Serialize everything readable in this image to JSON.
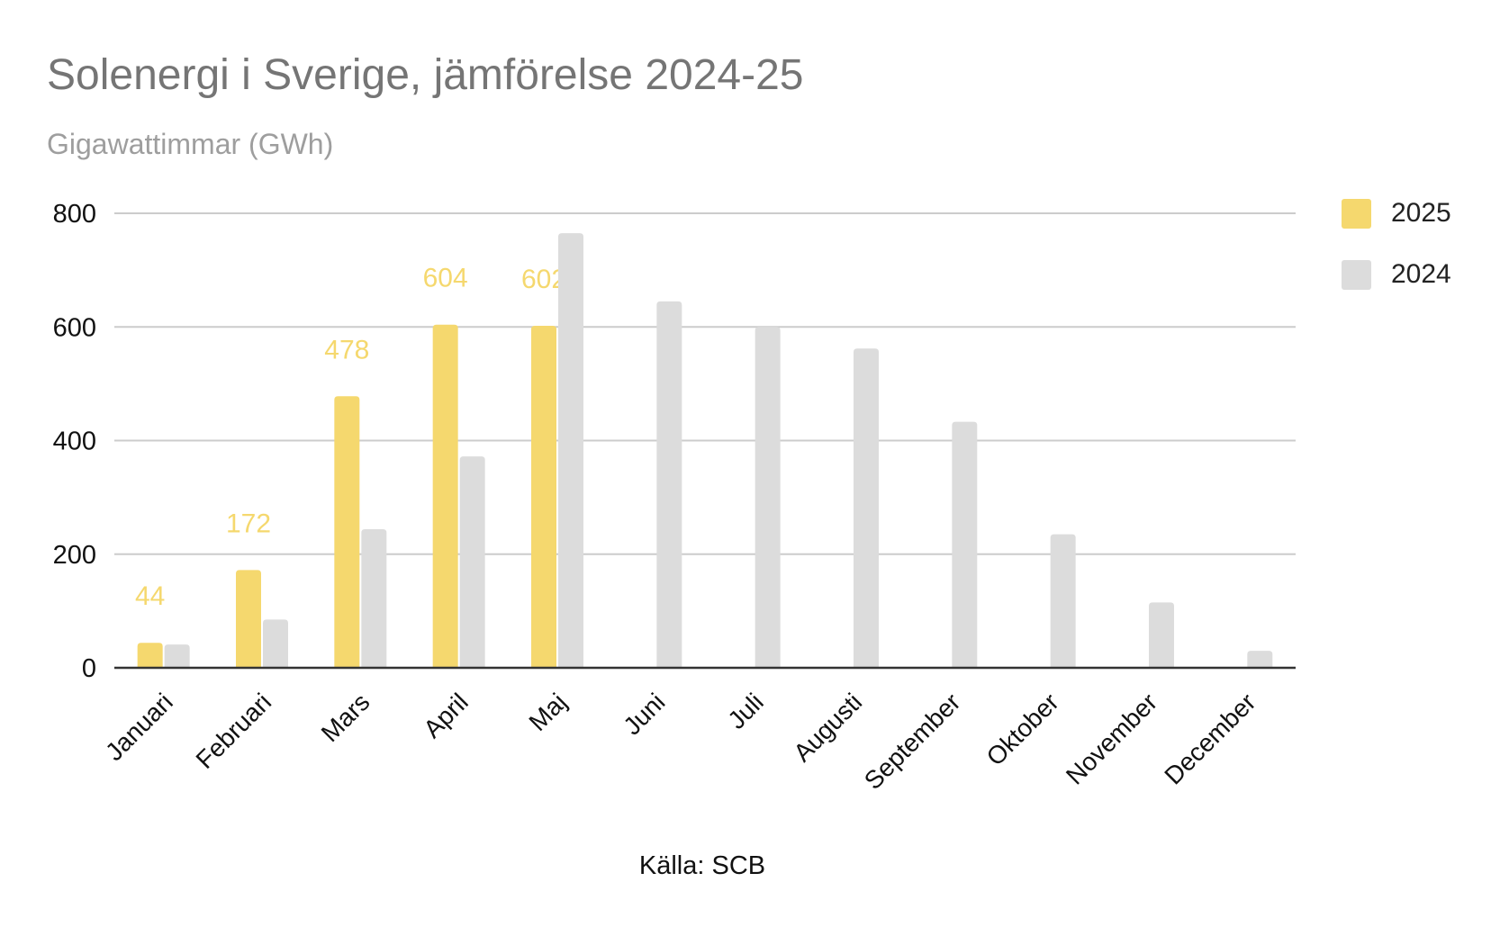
{
  "chart_data": {
    "type": "bar",
    "title": "Solenergi i Sverige, jämförelse 2024-25",
    "subtitle": "Gigawattimmar (GWh)",
    "source": "Källa: SCB",
    "categories": [
      "Januari",
      "Februari",
      "Mars",
      "April",
      "Maj",
      "Juni",
      "Juli",
      "Augusti",
      "September",
      "Oktober",
      "November",
      "December"
    ],
    "series": [
      {
        "name": "2025",
        "color": "#f5d86e",
        "values": [
          44,
          172,
          478,
          604,
          602,
          null,
          null,
          null,
          null,
          null,
          null,
          null
        ],
        "data_labels": true
      },
      {
        "name": "2024",
        "color": "#dcdcdc",
        "values": [
          41,
          85,
          244,
          372,
          765,
          645,
          600,
          562,
          433,
          235,
          115,
          30
        ],
        "data_labels": false
      }
    ],
    "ylim": [
      0,
      800
    ],
    "yticks": [
      0,
      200,
      400,
      600,
      800
    ],
    "grid": true,
    "legend": "right",
    "xlabel": "",
    "ylabel": ""
  }
}
